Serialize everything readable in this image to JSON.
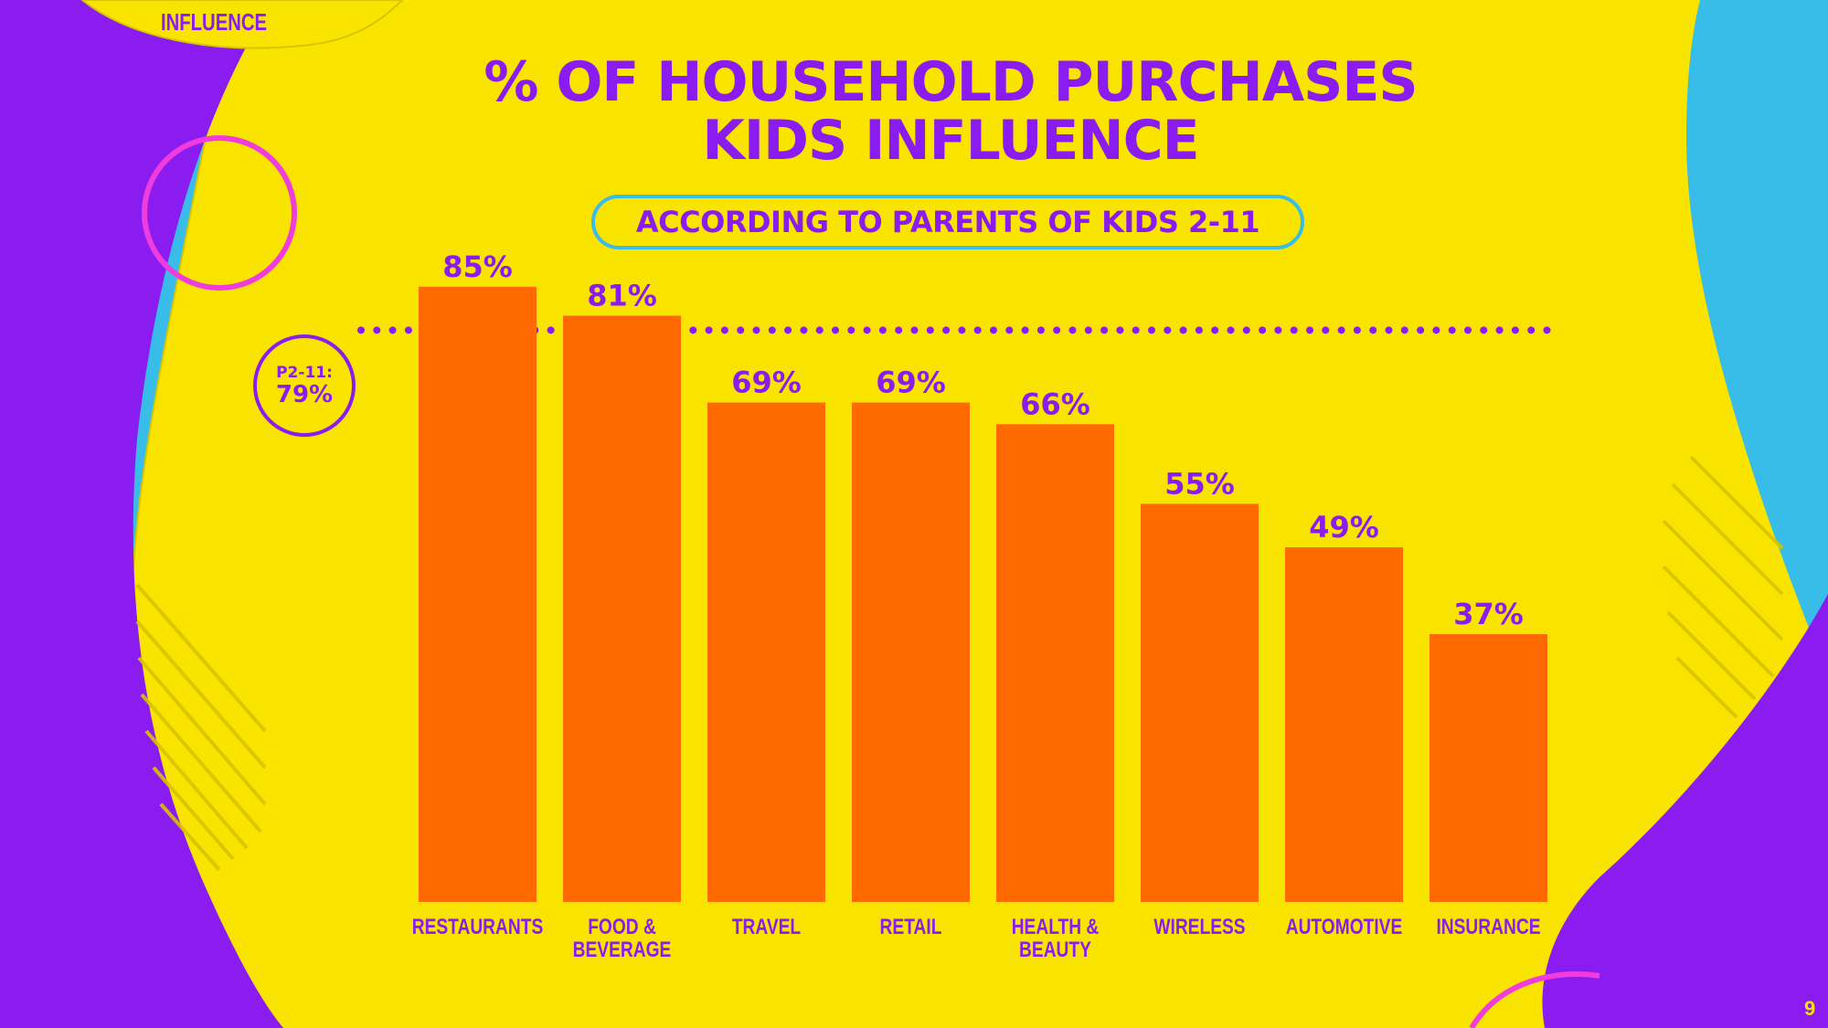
{
  "slide": {
    "section_label": "INFLUENCE",
    "title_line1": "% OF HOUSEHOLD PURCHASES",
    "title_line2": "KIDS INFLUENCE",
    "subtitle": "ACCORDING TO PARENTS OF KIDS 2-11",
    "page_number": "9"
  },
  "reference": {
    "label": "P2-11:",
    "value_label": "79%",
    "value": 79
  },
  "colors": {
    "background": "#f9e400",
    "accent_purple": "#8a1cf0",
    "accent_blue": "#37bde8",
    "accent_pink": "#f03cdc",
    "bar": "#ff6a00"
  },
  "chart_data": {
    "type": "bar",
    "title": "% OF HOUSEHOLD PURCHASES KIDS INFLUENCE",
    "subtitle": "ACCORDING TO PARENTS OF KIDS 2-11",
    "categories": [
      [
        "RESTAURANTS"
      ],
      [
        "FOOD &",
        "BEVERAGE"
      ],
      [
        "TRAVEL"
      ],
      [
        "RETAIL"
      ],
      [
        "HEALTH &",
        "BEAUTY"
      ],
      [
        "WIRELESS"
      ],
      [
        "AUTOMOTIVE"
      ],
      [
        "INSURANCE"
      ]
    ],
    "values": [
      85,
      81,
      69,
      69,
      66,
      55,
      49,
      37
    ],
    "data_labels": [
      "85%",
      "81%",
      "69%",
      "69%",
      "66%",
      "55%",
      "49%",
      "37%"
    ],
    "reference_line": {
      "label": "P2-11: 79%",
      "value": 79,
      "style": "dotted"
    },
    "ylim": [
      0,
      100
    ],
    "grid": false,
    "legend": "none"
  }
}
